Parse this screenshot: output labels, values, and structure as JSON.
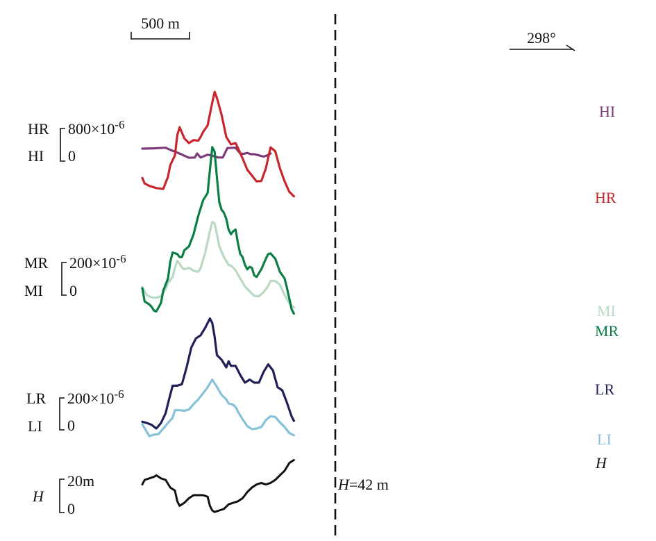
{
  "chart_data": {
    "type": "line",
    "scale_bar": "500 m",
    "direction": "298°",
    "marker_label_var": "H",
    "marker_label_val": "=42 m",
    "scales": [
      {
        "top_label": "HR",
        "bottom_label": "HI",
        "max_text": "800×10",
        "exp": "-6",
        "zero": "0"
      },
      {
        "top_label": "MR",
        "bottom_label": "MI",
        "max_text": "200×10",
        "exp": "-6",
        "zero": "0"
      },
      {
        "top_label": "LR",
        "bottom_label": "LI",
        "max_text": "200×10",
        "exp": "-6",
        "zero": "0"
      },
      {
        "top_label": "H",
        "bottom_label": "",
        "max_text": "20m",
        "exp": "",
        "zero": "0"
      }
    ],
    "series": [
      {
        "name": "HI",
        "color": "#7b3a78",
        "values": [
          [
            0,
            0.34
          ],
          [
            0.1,
            0.35
          ],
          [
            0.2,
            0.37
          ],
          [
            0.24,
            0.3
          ],
          [
            0.32,
            0.18
          ],
          [
            0.4,
            0.04
          ],
          [
            0.45,
            0.05
          ],
          [
            0.47,
            0.18
          ],
          [
            0.5,
            0.05
          ],
          [
            0.56,
            0.14
          ],
          [
            0.59,
            0.12
          ],
          [
            0.65,
            0.05
          ],
          [
            0.69,
            0.05
          ],
          [
            0.73,
            0.36
          ],
          [
            0.8,
            0.37
          ],
          [
            0.84,
            0.18
          ],
          [
            0.87,
            0.17
          ],
          [
            0.9,
            0.2
          ],
          [
            0.93,
            0.16
          ],
          [
            0.96,
            0.16
          ],
          [
            1.0,
            0.12
          ],
          [
            1.04,
            0.08
          ],
          [
            1.07,
            0.12
          ],
          [
            1.1,
            0.18
          ]
        ]
      },
      {
        "name": "HR",
        "color": "#c8262c",
        "values": [
          [
            0,
            -0.62
          ],
          [
            0.02,
            -0.8
          ],
          [
            0.06,
            -0.88
          ],
          [
            0.12,
            -0.95
          ],
          [
            0.18,
            -0.98
          ],
          [
            0.22,
            -0.58
          ],
          [
            0.24,
            -0.2
          ],
          [
            0.28,
            0.12
          ],
          [
            0.3,
            0.78
          ],
          [
            0.32,
            1.04
          ],
          [
            0.36,
            0.68
          ],
          [
            0.4,
            0.52
          ],
          [
            0.44,
            0.62
          ],
          [
            0.48,
            0.6
          ],
          [
            0.5,
            0.72
          ],
          [
            0.52,
            0.88
          ],
          [
            0.56,
            1.1
          ],
          [
            0.6,
            1.85
          ],
          [
            0.62,
            2.2
          ],
          [
            0.64,
            2.0
          ],
          [
            0.68,
            1.45
          ],
          [
            0.72,
            0.72
          ],
          [
            0.76,
            0.48
          ],
          [
            0.8,
            0.52
          ],
          [
            0.82,
            0.36
          ],
          [
            0.86,
            0.02
          ],
          [
            0.9,
            -0.35
          ],
          [
            0.94,
            -0.54
          ],
          [
            0.98,
            -0.73
          ],
          [
            1.02,
            -0.72
          ],
          [
            1.06,
            -0.3
          ],
          [
            1.08,
            0.05
          ],
          [
            1.1,
            0.38
          ],
          [
            1.14,
            0.26
          ],
          [
            1.18,
            -0.3
          ],
          [
            1.22,
            -0.73
          ],
          [
            1.26,
            -1.07
          ],
          [
            1.3,
            -1.22
          ]
        ]
      },
      {
        "name": "MI",
        "color": "#b8d9c2",
        "values": [
          [
            0,
            0.22
          ],
          [
            0.04,
            -0.05
          ],
          [
            0.08,
            -0.12
          ],
          [
            0.12,
            -0.13
          ],
          [
            0.16,
            -0.08
          ],
          [
            0.2,
            0.15
          ],
          [
            0.22,
            0.35
          ],
          [
            0.26,
            0.55
          ],
          [
            0.28,
            0.85
          ],
          [
            0.3,
            1.08
          ],
          [
            0.32,
            0.98
          ],
          [
            0.34,
            0.86
          ],
          [
            0.36,
            0.8
          ],
          [
            0.4,
            0.85
          ],
          [
            0.44,
            0.75
          ],
          [
            0.48,
            0.72
          ],
          [
            0.5,
            0.84
          ],
          [
            0.54,
            1.35
          ],
          [
            0.58,
            2.05
          ],
          [
            0.6,
            2.35
          ],
          [
            0.62,
            2.3
          ],
          [
            0.64,
            1.95
          ],
          [
            0.66,
            1.55
          ],
          [
            0.7,
            1.2
          ],
          [
            0.74,
            0.94
          ],
          [
            0.76,
            0.92
          ],
          [
            0.78,
            0.86
          ],
          [
            0.8,
            0.76
          ],
          [
            0.84,
            0.5
          ],
          [
            0.88,
            0.24
          ],
          [
            0.92,
            0.08
          ],
          [
            0.96,
            -0.07
          ],
          [
            1.0,
            -0.08
          ],
          [
            1.04,
            0.05
          ],
          [
            1.08,
            0.26
          ],
          [
            1.1,
            0.42
          ],
          [
            1.14,
            0.42
          ],
          [
            1.18,
            0.3
          ],
          [
            1.22,
            -0.04
          ],
          [
            1.26,
            -0.3
          ],
          [
            1.3,
            -0.45
          ]
        ]
      },
      {
        "name": "MR",
        "color": "#0b7d45",
        "values": [
          [
            0,
            0.18
          ],
          [
            0.02,
            -0.25
          ],
          [
            0.04,
            -0.3
          ],
          [
            0.06,
            -0.35
          ],
          [
            0.08,
            -0.43
          ],
          [
            0.1,
            -0.55
          ],
          [
            0.12,
            -0.58
          ],
          [
            0.16,
            -0.3
          ],
          [
            0.18,
            0.1
          ],
          [
            0.22,
            0.5
          ],
          [
            0.24,
            1.05
          ],
          [
            0.26,
            1.35
          ],
          [
            0.3,
            1.3
          ],
          [
            0.32,
            1.2
          ],
          [
            0.34,
            1.2
          ],
          [
            0.36,
            1.42
          ],
          [
            0.4,
            1.55
          ],
          [
            0.44,
            1.95
          ],
          [
            0.48,
            2.55
          ],
          [
            0.52,
            3.05
          ],
          [
            0.56,
            3.3
          ],
          [
            0.58,
            4.05
          ],
          [
            0.6,
            4.8
          ],
          [
            0.62,
            4.65
          ],
          [
            0.64,
            3.8
          ],
          [
            0.66,
            3.0
          ],
          [
            0.68,
            2.75
          ],
          [
            0.7,
            2.65
          ],
          [
            0.72,
            2.45
          ],
          [
            0.74,
            2.1
          ],
          [
            0.76,
            1.95
          ],
          [
            0.78,
            2.05
          ],
          [
            0.8,
            2.1
          ],
          [
            0.82,
            1.65
          ],
          [
            0.84,
            1.3
          ],
          [
            0.86,
            1.2
          ],
          [
            0.88,
            0.95
          ],
          [
            0.9,
            0.8
          ],
          [
            0.92,
            0.88
          ],
          [
            0.94,
            0.85
          ],
          [
            0.96,
            0.6
          ],
          [
            0.98,
            0.55
          ],
          [
            1.02,
            0.8
          ],
          [
            1.06,
            1.15
          ],
          [
            1.08,
            1.3
          ],
          [
            1.1,
            1.32
          ],
          [
            1.14,
            1.15
          ],
          [
            1.18,
            0.72
          ],
          [
            1.22,
            0.5
          ],
          [
            1.24,
            0.2
          ],
          [
            1.26,
            -0.15
          ],
          [
            1.28,
            -0.5
          ],
          [
            1.3,
            -0.65
          ]
        ]
      },
      {
        "name": "LI",
        "color": "#86c0d9",
        "values": [
          [
            0,
            0.14
          ],
          [
            0.04,
            -0.12
          ],
          [
            0.06,
            -0.25
          ],
          [
            0.1,
            -0.2
          ],
          [
            0.14,
            -0.18
          ],
          [
            0.18,
            0.0
          ],
          [
            0.22,
            0.18
          ],
          [
            0.26,
            0.35
          ],
          [
            0.28,
            0.6
          ],
          [
            0.32,
            0.6
          ],
          [
            0.36,
            0.58
          ],
          [
            0.4,
            0.62
          ],
          [
            0.44,
            0.8
          ],
          [
            0.48,
            0.95
          ],
          [
            0.52,
            1.15
          ],
          [
            0.56,
            1.35
          ],
          [
            0.6,
            1.6
          ],
          [
            0.64,
            1.36
          ],
          [
            0.68,
            1.1
          ],
          [
            0.72,
            0.95
          ],
          [
            0.74,
            0.82
          ],
          [
            0.78,
            0.78
          ],
          [
            0.8,
            0.7
          ],
          [
            0.82,
            0.55
          ],
          [
            0.86,
            0.3
          ],
          [
            0.9,
            0.08
          ],
          [
            0.94,
            -0.02
          ],
          [
            0.98,
            0.0
          ],
          [
            1.02,
            0.05
          ],
          [
            1.06,
            0.28
          ],
          [
            1.1,
            0.4
          ],
          [
            1.14,
            0.38
          ],
          [
            1.18,
            0.2
          ],
          [
            1.22,
            0.05
          ],
          [
            1.26,
            -0.15
          ],
          [
            1.3,
            -0.22
          ]
        ]
      },
      {
        "name": "LR",
        "color": "#1f2057",
        "values": [
          [
            0,
            0.22
          ],
          [
            0.04,
            0.18
          ],
          [
            0.08,
            0.12
          ],
          [
            0.12,
            0.0
          ],
          [
            0.16,
            0.18
          ],
          [
            0.2,
            0.5
          ],
          [
            0.22,
            0.82
          ],
          [
            0.26,
            1.4
          ],
          [
            0.3,
            1.4
          ],
          [
            0.34,
            1.45
          ],
          [
            0.38,
            2.0
          ],
          [
            0.42,
            2.65
          ],
          [
            0.46,
            2.95
          ],
          [
            0.5,
            3.05
          ],
          [
            0.54,
            3.3
          ],
          [
            0.58,
            3.6
          ],
          [
            0.6,
            3.45
          ],
          [
            0.62,
            3.0
          ],
          [
            0.64,
            2.4
          ],
          [
            0.68,
            2.25
          ],
          [
            0.72,
            2.0
          ],
          [
            0.74,
            2.2
          ],
          [
            0.76,
            2.05
          ],
          [
            0.8,
            2.05
          ],
          [
            0.84,
            1.75
          ],
          [
            0.88,
            1.5
          ],
          [
            0.92,
            1.6
          ],
          [
            0.96,
            1.5
          ],
          [
            1.0,
            1.5
          ],
          [
            1.04,
            1.85
          ],
          [
            1.08,
            2.1
          ],
          [
            1.12,
            1.9
          ],
          [
            1.16,
            1.35
          ],
          [
            1.2,
            1.25
          ],
          [
            1.24,
            0.85
          ],
          [
            1.28,
            0.4
          ],
          [
            1.3,
            0.25
          ]
        ]
      },
      {
        "name": "H",
        "color": "#111111",
        "values": [
          [
            0,
            17
          ],
          [
            0.02,
            20
          ],
          [
            0.06,
            21
          ],
          [
            0.1,
            22
          ],
          [
            0.12,
            23
          ],
          [
            0.14,
            22
          ],
          [
            0.16,
            21
          ],
          [
            0.2,
            20
          ],
          [
            0.24,
            15
          ],
          [
            0.28,
            13
          ],
          [
            0.3,
            6
          ],
          [
            0.32,
            3
          ],
          [
            0.36,
            5
          ],
          [
            0.4,
            8
          ],
          [
            0.44,
            10
          ],
          [
            0.48,
            10
          ],
          [
            0.52,
            10
          ],
          [
            0.56,
            9
          ],
          [
            0.58,
            3
          ],
          [
            0.6,
            0
          ],
          [
            0.62,
            -1
          ],
          [
            0.66,
            0
          ],
          [
            0.7,
            1
          ],
          [
            0.74,
            4
          ],
          [
            0.78,
            5
          ],
          [
            0.82,
            6
          ],
          [
            0.86,
            8
          ],
          [
            0.9,
            12
          ],
          [
            0.94,
            15
          ],
          [
            0.98,
            17
          ],
          [
            1.02,
            18
          ],
          [
            1.06,
            17
          ],
          [
            1.1,
            18
          ],
          [
            1.14,
            20
          ],
          [
            1.18,
            23
          ],
          [
            1.22,
            26
          ],
          [
            1.26,
            31
          ],
          [
            1.3,
            33
          ]
        ]
      }
    ]
  }
}
